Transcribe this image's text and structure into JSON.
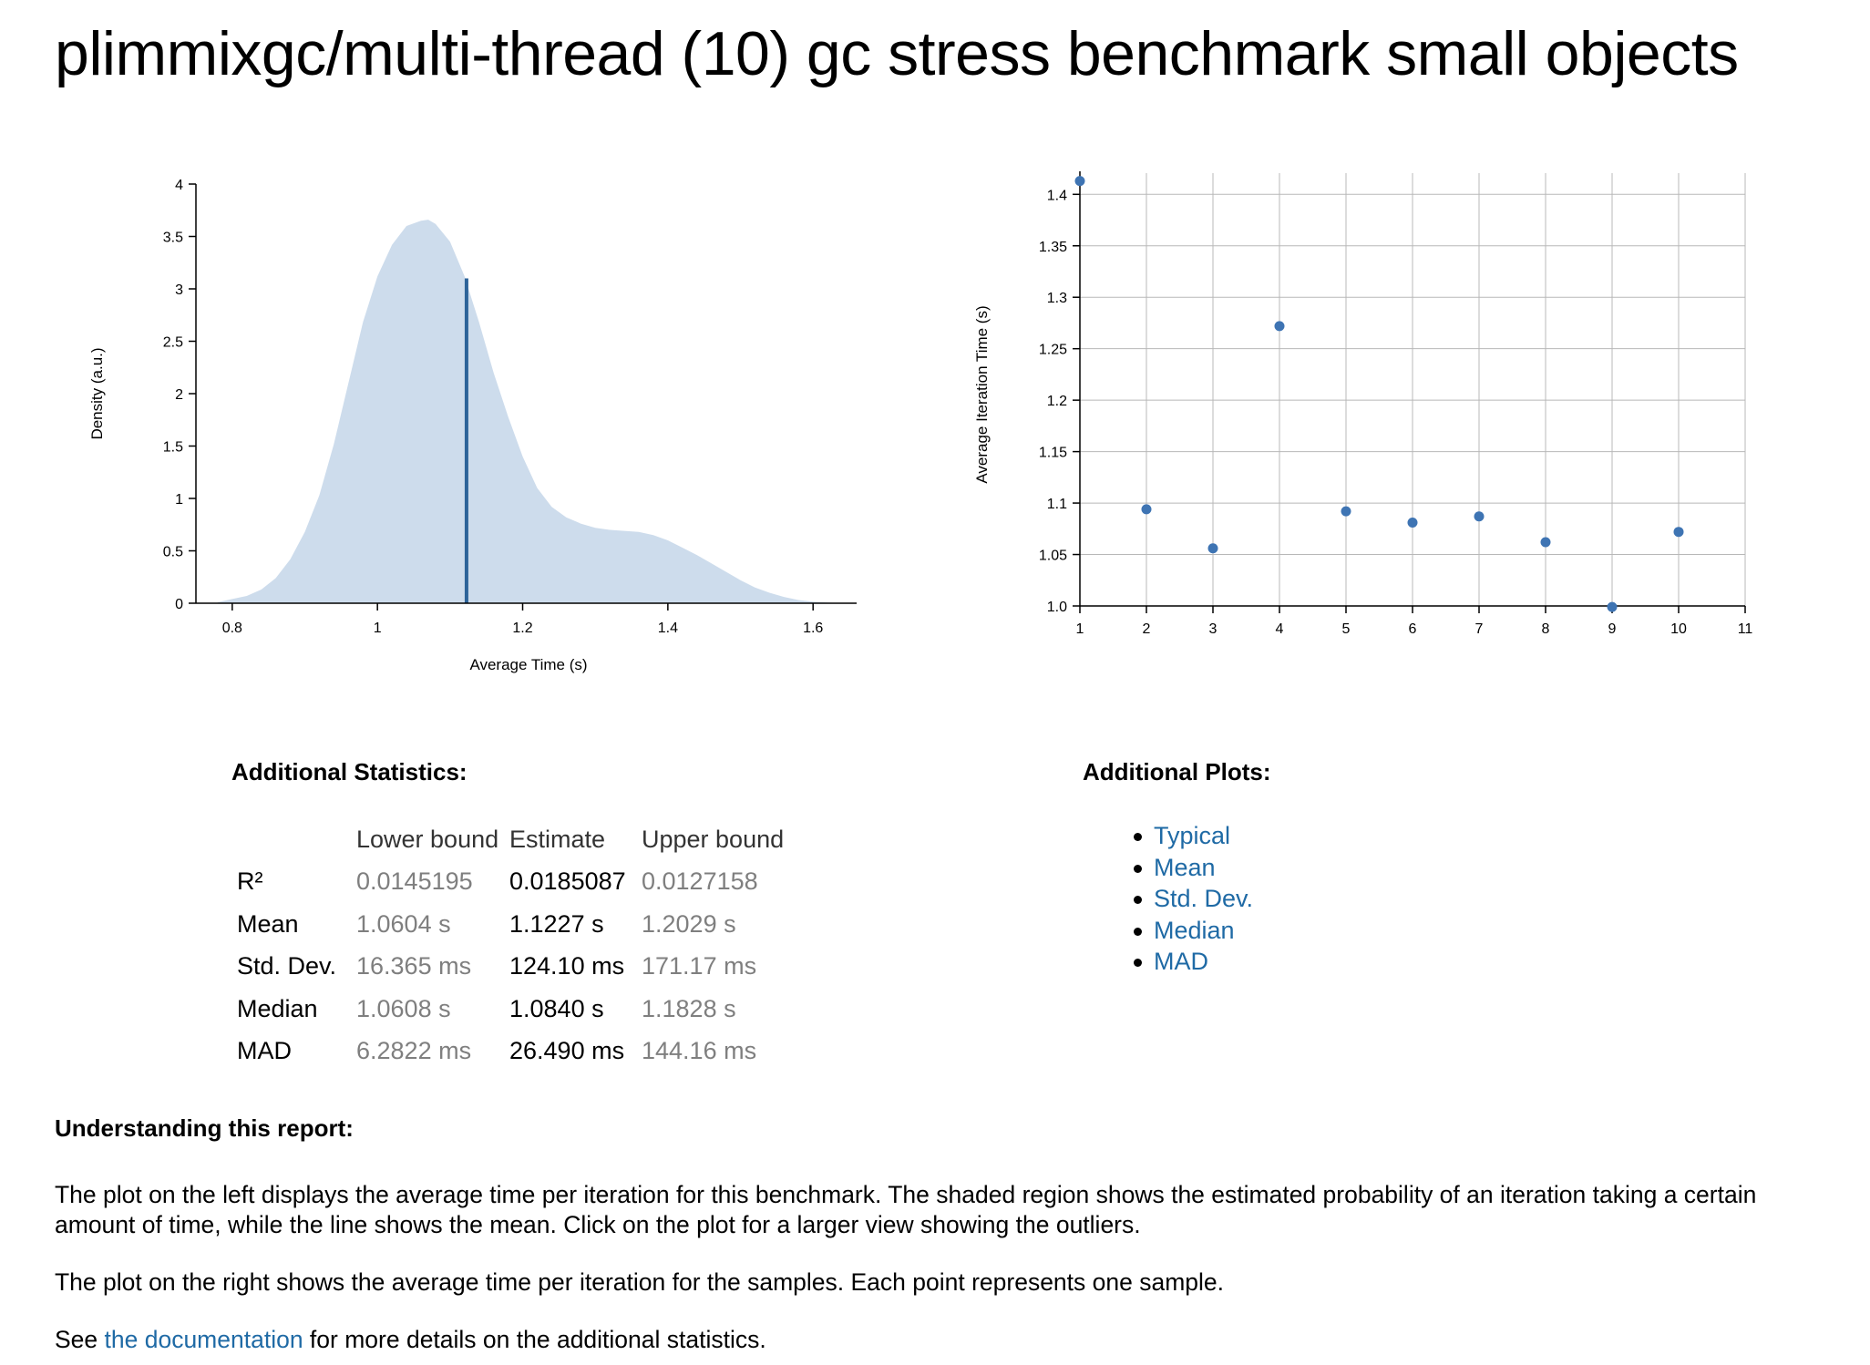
{
  "page": {
    "title": "plimmixgc/multi-thread (10) gc stress benchmark small objects"
  },
  "colors": {
    "density_fill": "#cddcec",
    "mean_line": "#2d6399",
    "point": "#3e74b3",
    "link": "#1f6aa5"
  },
  "chart_data": [
    {
      "type": "area",
      "name": "pdf",
      "xlabel": "Average Time (s)",
      "ylabel": "Density (a.u.)",
      "xlim": [
        0.75,
        1.66
      ],
      "ylim": [
        0,
        4
      ],
      "xticks": [
        "0.8",
        "1",
        "1.2",
        "1.4",
        "1.6"
      ],
      "xtick_values": [
        0.8,
        1.0,
        1.2,
        1.4,
        1.6
      ],
      "yticks": [
        "0",
        "0.5",
        "1",
        "1.5",
        "2",
        "2.5",
        "3",
        "3.5",
        "4"
      ],
      "ytick_values": [
        0,
        0.5,
        1,
        1.5,
        2,
        2.5,
        3,
        3.5,
        4
      ],
      "density": {
        "x": [
          0.78,
          0.8,
          0.82,
          0.84,
          0.86,
          0.88,
          0.9,
          0.92,
          0.94,
          0.96,
          0.98,
          1.0,
          1.02,
          1.04,
          1.06,
          1.07,
          1.08,
          1.1,
          1.12,
          1.14,
          1.16,
          1.18,
          1.2,
          1.22,
          1.24,
          1.26,
          1.28,
          1.3,
          1.32,
          1.34,
          1.36,
          1.38,
          1.4,
          1.42,
          1.44,
          1.46,
          1.48,
          1.5,
          1.52,
          1.54,
          1.56,
          1.58,
          1.6,
          1.62,
          1.64
        ],
        "y": [
          0.01,
          0.04,
          0.07,
          0.13,
          0.24,
          0.42,
          0.68,
          1.03,
          1.52,
          2.1,
          2.68,
          3.12,
          3.42,
          3.6,
          3.65,
          3.66,
          3.62,
          3.45,
          3.12,
          2.68,
          2.2,
          1.78,
          1.4,
          1.1,
          0.92,
          0.82,
          0.76,
          0.72,
          0.7,
          0.69,
          0.68,
          0.65,
          0.6,
          0.53,
          0.46,
          0.38,
          0.3,
          0.22,
          0.15,
          0.1,
          0.06,
          0.03,
          0.015,
          0.006,
          0.0
        ]
      },
      "mean": {
        "x": 1.1227,
        "y": 3.1
      }
    },
    {
      "type": "scatter",
      "name": "iteration-times",
      "xlabel": "",
      "ylabel": "Average Iteration Time (s)",
      "xlim": [
        1,
        11
      ],
      "ylim": [
        1.0,
        1.41
      ],
      "xticks": [
        "1",
        "2",
        "3",
        "4",
        "5",
        "6",
        "7",
        "8",
        "9",
        "10",
        "11"
      ],
      "xtick_values": [
        1,
        2,
        3,
        4,
        5,
        6,
        7,
        8,
        9,
        10,
        11
      ],
      "yticks": [
        "1.0",
        "1.05",
        "1.1",
        "1.15",
        "1.2",
        "1.25",
        "1.3",
        "1.35",
        "1.4"
      ],
      "ytick_values": [
        1.0,
        1.05,
        1.1,
        1.15,
        1.2,
        1.25,
        1.3,
        1.35,
        1.4
      ],
      "grid": true,
      "points": {
        "x": [
          1,
          2,
          3,
          4,
          5,
          6,
          7,
          8,
          9,
          10
        ],
        "y": [
          1.413,
          1.094,
          1.056,
          1.272,
          1.092,
          1.081,
          1.087,
          1.062,
          0.999,
          1.072
        ]
      }
    }
  ],
  "stats": {
    "heading": "Additional Statistics:",
    "headers": {
      "lower": "Lower bound",
      "estimate": "Estimate",
      "upper": "Upper bound"
    },
    "rows": [
      {
        "label": "R²",
        "lower": "0.0145195",
        "estimate": "0.0185087",
        "upper": "0.0127158"
      },
      {
        "label": "Mean",
        "lower": "1.0604 s",
        "estimate": "1.1227 s",
        "upper": "1.2029 s"
      },
      {
        "label": "Std. Dev.",
        "lower": "16.365 ms",
        "estimate": "124.10 ms",
        "upper": "171.17 ms"
      },
      {
        "label": "Median",
        "lower": "1.0608 s",
        "estimate": "1.0840 s",
        "upper": "1.1828 s"
      },
      {
        "label": "MAD",
        "lower": "6.2822 ms",
        "estimate": "26.490 ms",
        "upper": "144.16 ms"
      }
    ]
  },
  "plots": {
    "heading": "Additional Plots:",
    "links": [
      "Typical",
      "Mean",
      "Std. Dev.",
      "Median",
      "MAD"
    ]
  },
  "report": {
    "heading": "Understanding this report:",
    "p1": "The plot on the left displays the average time per iteration for this benchmark. The shaded region shows the estimated probability of an iteration taking a certain amount of time, while the line shows the mean. Click on the plot for a larger view showing the outliers.",
    "p2": "The plot on the right shows the average time per iteration for the samples. Each point represents one sample.",
    "p3_before": "See ",
    "p3_link": "the documentation",
    "p3_after": " for more details on the additional statistics."
  }
}
